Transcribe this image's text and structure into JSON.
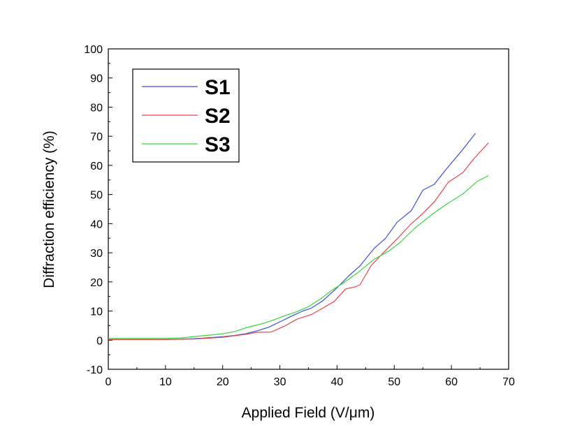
{
  "chart_data": {
    "type": "line",
    "title": "",
    "xlabel": "Applied Field (V/μm)",
    "ylabel": "Diffraction efficiency (%)",
    "xlim": [
      0,
      70
    ],
    "ylim": [
      -10,
      100
    ],
    "x_ticks": [
      0,
      10,
      20,
      30,
      40,
      50,
      60,
      70
    ],
    "y_ticks": [
      -10,
      0,
      10,
      20,
      30,
      40,
      50,
      60,
      70,
      80,
      90,
      100
    ],
    "grid": false,
    "legend_position": "top-left",
    "series": [
      {
        "name": "S1",
        "color": "#3b4fd6",
        "points": [
          [
            0,
            0.2
          ],
          [
            5,
            0.2
          ],
          [
            10,
            0.2
          ],
          [
            15,
            0.5
          ],
          [
            20,
            1.2
          ],
          [
            22,
            1.6
          ],
          [
            24,
            2.2
          ],
          [
            26,
            3.2
          ],
          [
            28,
            4.4
          ],
          [
            30,
            6.3
          ],
          [
            32,
            8.2
          ],
          [
            34,
            10
          ],
          [
            35.5,
            11
          ],
          [
            37.5,
            13.5
          ],
          [
            40,
            18
          ],
          [
            42,
            22
          ],
          [
            44,
            25.5
          ],
          [
            46.5,
            31.5
          ],
          [
            48.5,
            35
          ],
          [
            50.5,
            40.5
          ],
          [
            53,
            44.5
          ],
          [
            55,
            51.5
          ],
          [
            57,
            53.5
          ],
          [
            59,
            58.5
          ],
          [
            62,
            65.5
          ],
          [
            64.2,
            71
          ]
        ]
      },
      {
        "name": "S2",
        "color": "#e8454a",
        "points": [
          [
            0,
            0.2
          ],
          [
            5,
            0.2
          ],
          [
            10,
            0.2
          ],
          [
            15,
            0.4
          ],
          [
            20,
            1
          ],
          [
            24,
            2
          ],
          [
            26,
            2.7
          ],
          [
            28.5,
            2.8
          ],
          [
            31,
            5
          ],
          [
            33,
            7.2
          ],
          [
            35.5,
            8.8
          ],
          [
            37.5,
            11
          ],
          [
            39.5,
            13.3
          ],
          [
            41.5,
            17.6
          ],
          [
            43,
            18.2
          ],
          [
            44,
            19
          ],
          [
            46,
            25.7
          ],
          [
            48,
            29.8
          ],
          [
            50.5,
            34.8
          ],
          [
            53,
            40
          ],
          [
            55,
            43.5
          ],
          [
            57,
            47.5
          ],
          [
            59.5,
            54.3
          ],
          [
            62,
            57.5
          ],
          [
            64,
            62.5
          ],
          [
            66.5,
            67.8
          ]
        ]
      },
      {
        "name": "S3",
        "color": "#3cd43c",
        "points": [
          [
            0,
            0.6
          ],
          [
            5,
            0.6
          ],
          [
            10,
            0.6
          ],
          [
            13,
            0.8
          ],
          [
            16,
            1.4
          ],
          [
            20,
            2.2
          ],
          [
            22,
            2.9
          ],
          [
            24.5,
            4.5
          ],
          [
            27,
            5.7
          ],
          [
            29,
            7
          ],
          [
            31,
            8.5
          ],
          [
            33,
            9.8
          ],
          [
            35,
            11.5
          ],
          [
            37,
            14
          ],
          [
            39,
            17
          ],
          [
            41,
            19.5
          ],
          [
            43.5,
            23
          ],
          [
            46.5,
            27.8
          ],
          [
            49,
            30.5
          ],
          [
            51,
            33.5
          ],
          [
            53.5,
            38.3
          ],
          [
            56.5,
            43
          ],
          [
            59,
            46.5
          ],
          [
            62,
            50.2
          ],
          [
            64.5,
            54.5
          ],
          [
            66.5,
            56.5
          ]
        ]
      }
    ]
  }
}
